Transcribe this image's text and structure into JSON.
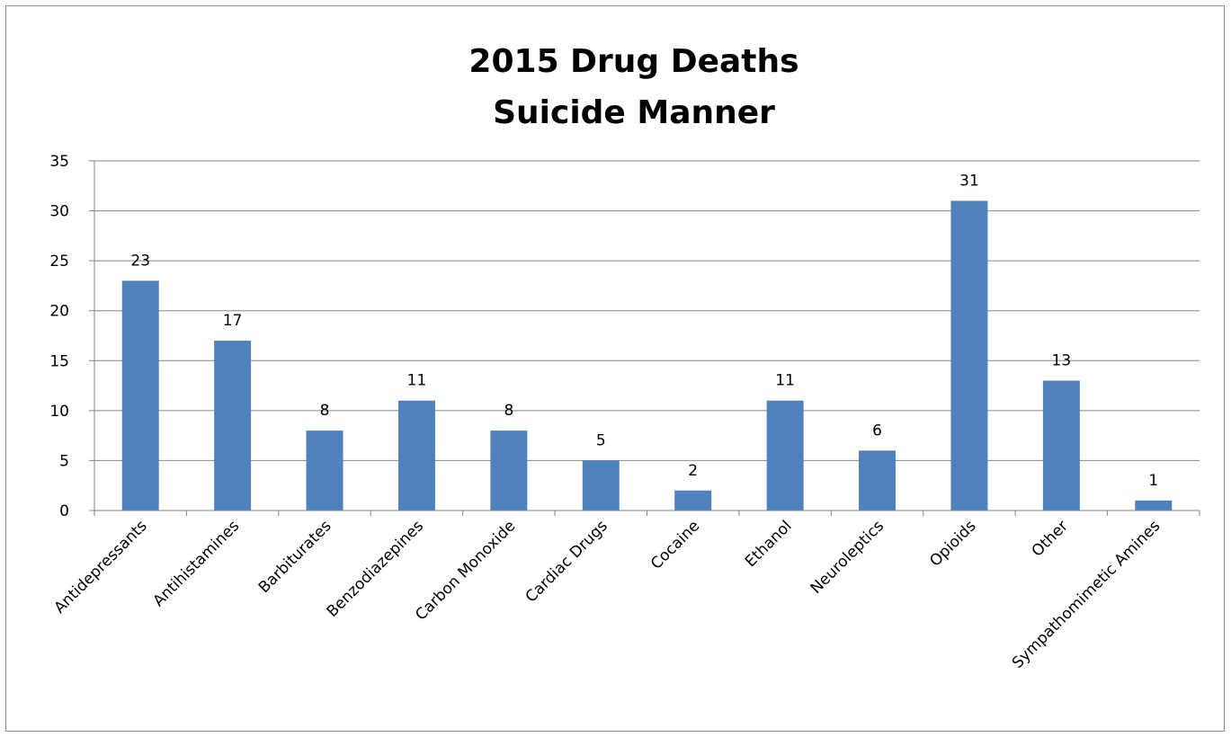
{
  "chart_data": {
    "type": "bar",
    "title": [
      "2015 Drug Deaths",
      "Suicide Manner"
    ],
    "xlabel": "",
    "ylabel": "",
    "categories": [
      "Antidepressants",
      "Antihistamines",
      "Barbiturates",
      "Benzodiazepines",
      "Carbon Monoxide",
      "Cardiac Drugs",
      "Cocaine",
      "Ethanol",
      "Neuroleptics",
      "Opioids",
      "Other",
      "Sympathomimetic Amines"
    ],
    "values": [
      23,
      17,
      8,
      11,
      8,
      5,
      2,
      11,
      6,
      31,
      13,
      1
    ],
    "ylim": [
      0,
      35
    ],
    "yticks": [
      0,
      5,
      10,
      15,
      20,
      25,
      30,
      35
    ],
    "grid": true,
    "data_labels": true,
    "bar_color": "#4f81bd",
    "grid_color": "#868686"
  }
}
